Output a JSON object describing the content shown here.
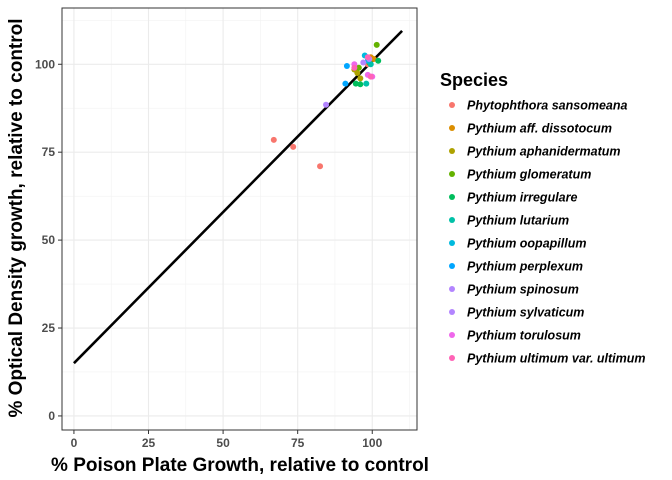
{
  "chart_data": {
    "type": "scatter",
    "xlabel": "% Poison Plate Growth, relative to control",
    "ylabel": "% Optical Density growth, relative to control",
    "xlim": [
      -4,
      115
    ],
    "ylim": [
      -4,
      116
    ],
    "xticks": [
      0,
      25,
      50,
      75,
      100
    ],
    "yticks": [
      0,
      25,
      50,
      75,
      100
    ],
    "grid": true,
    "legend_position": "right",
    "legend_title": "Species",
    "fit_line": {
      "x": [
        0,
        110
      ],
      "y": [
        15,
        109.5
      ],
      "color": "#000000"
    },
    "series": [
      {
        "name": "Phytophthora sansomeana",
        "color": "#F8766D",
        "points": [
          [
            67,
            78.5
          ],
          [
            73.5,
            76.5
          ],
          [
            82.5,
            71
          ],
          [
            98.5,
            100
          ]
        ]
      },
      {
        "name": "Pythium aff. dissotocum",
        "color": "#DB8E00",
        "points": [
          [
            99.5,
            102
          ],
          [
            100.5,
            101.5
          ]
        ]
      },
      {
        "name": "Pythium aphanidermatum",
        "color": "#AEA200",
        "points": [
          [
            94,
            98.5
          ],
          [
            95,
            97.5
          ],
          [
            96,
            96
          ]
        ]
      },
      {
        "name": "Pythium glomeratum",
        "color": "#64B200",
        "points": [
          [
            101.5,
            105.5
          ],
          [
            99,
            100.5
          ],
          [
            95.5,
            99
          ]
        ]
      },
      {
        "name": "Pythium irregulare",
        "color": "#00BD5C",
        "points": [
          [
            94.5,
            94.5
          ],
          [
            96,
            94.3
          ],
          [
            102,
            101
          ]
        ]
      },
      {
        "name": "Pythium lutarium",
        "color": "#00C1A7",
        "points": [
          [
            98,
            94.5
          ],
          [
            99.5,
            100
          ]
        ]
      },
      {
        "name": "Pythium oopapillum",
        "color": "#00BADE",
        "points": [
          [
            97.5,
            102.5
          ],
          [
            98.5,
            101
          ]
        ]
      },
      {
        "name": "Pythium perplexum",
        "color": "#00A6FF",
        "points": [
          [
            91.5,
            99.5
          ],
          [
            91,
            94.5
          ]
        ]
      },
      {
        "name": "Pythium spinosum",
        "color": "#B385FF",
        "points": [
          [
            99,
            101.5
          ]
        ]
      },
      {
        "name": "Pythium sylvaticum",
        "color": "#B385FF",
        "points": [
          [
            84.5,
            88.5
          ],
          [
            97,
            100.5
          ]
        ]
      },
      {
        "name": "Pythium torulosum",
        "color": "#EF67EB",
        "points": [
          [
            94,
            100
          ],
          [
            98.5,
            97
          ],
          [
            100,
            96.5
          ]
        ]
      },
      {
        "name": "Pythium ultimum var. ultimum",
        "color": "#FF63B6",
        "points": [
          [
            94,
            99
          ],
          [
            99.5,
            96.5
          ],
          [
            98.5,
            102
          ]
        ]
      }
    ]
  }
}
